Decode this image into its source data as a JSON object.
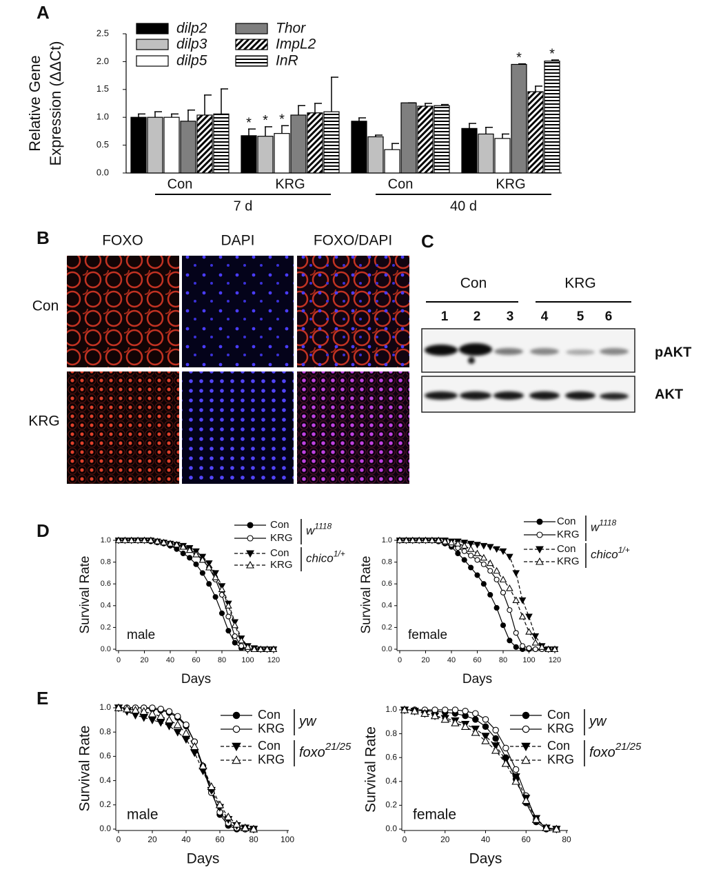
{
  "chart_data": [
    {
      "panel": "A",
      "type": "bar",
      "y_label": [
        "Relative Gene",
        "Expression (ΔΔCt)"
      ],
      "categories": [
        "Con",
        "KRG",
        "Con",
        "KRG"
      ],
      "groups": [
        "7 d",
        "40 d"
      ],
      "ylim": [
        0,
        2.5
      ],
      "yticks": [
        {
          "value": 0,
          "label": "0.0"
        },
        {
          "value": 0.5,
          "label": "0.5"
        },
        {
          "value": 1,
          "label": "1.0"
        },
        {
          "value": 1.5,
          "label": "1.5"
        },
        {
          "value": 2,
          "label": "2.0"
        },
        {
          "value": 2.5,
          "label": "2.5"
        }
      ],
      "series": [
        {
          "name": "dilp2",
          "color": "#000000",
          "values": [
            1.0,
            0.67,
            0.93,
            0.8
          ],
          "errors": [
            0.06,
            0.12,
            0.06,
            0.09
          ]
        },
        {
          "name": "dilp3",
          "color": "#c0c0c0",
          "values": [
            1.0,
            0.66,
            0.65,
            0.7
          ],
          "errors": [
            0.1,
            0.17,
            0.03,
            0.12
          ]
        },
        {
          "name": "dilp5",
          "color": "#ffffff",
          "values": [
            1.0,
            0.71,
            0.42,
            0.62
          ],
          "errors": [
            0.06,
            0.14,
            0.11,
            0.08
          ]
        },
        {
          "name": "Thor",
          "color": "#7f7f7f",
          "values": [
            0.93,
            1.04,
            1.26,
            1.95
          ],
          "errors": [
            0.2,
            0.17,
            0.0,
            0.01
          ]
        },
        {
          "name": "ImpL2",
          "color": "#000000",
          "hatch": "diagonal",
          "values": [
            1.04,
            1.08,
            1.2,
            1.46
          ],
          "errors": [
            0.36,
            0.17,
            0.05,
            0.1
          ]
        },
        {
          "name": "InR",
          "color": "#000000",
          "hatch": "horizontal",
          "values": [
            1.06,
            1.1,
            1.21,
            2.01
          ],
          "errors": [
            0.45,
            0.62,
            0.02,
            0.02
          ]
        }
      ],
      "annotations": [
        {
          "text": "*",
          "series": 0,
          "category": 1
        },
        {
          "text": "*",
          "series": 1,
          "category": 1
        },
        {
          "text": "*",
          "series": 2,
          "category": 1
        },
        {
          "text": "*",
          "series": 3,
          "category": 3
        },
        {
          "text": "*",
          "series": 5,
          "category": 3
        }
      ]
    },
    {
      "panel": "D",
      "type": "line",
      "title": "male",
      "x_label": "Days",
      "y_label": "Survival Rate",
      "xlim": [
        0,
        120
      ],
      "xticks": [
        0,
        20,
        40,
        60,
        80,
        100,
        120
      ],
      "ylim": [
        0,
        1
      ],
      "yticks": [
        {
          "value": 0,
          "label": "0.0"
        },
        {
          "value": 0.2,
          "label": "0.2"
        },
        {
          "value": 0.4,
          "label": "0.4"
        },
        {
          "value": 0.6,
          "label": "0.6"
        },
        {
          "value": 0.8,
          "label": "0.8"
        },
        {
          "value": 1,
          "label": "1.0"
        }
      ],
      "x": [
        0,
        5,
        10,
        15,
        20,
        25,
        30,
        35,
        40,
        45,
        50,
        55,
        60,
        65,
        70,
        75,
        80,
        85,
        90,
        95,
        100,
        105,
        110,
        115,
        120
      ],
      "genotypes": [
        {
          "label": "w",
          "sup": "1118"
        },
        {
          "label": "chico",
          "sup": "1/+"
        }
      ],
      "series": [
        {
          "name": "Con",
          "genotype": 0,
          "marker": "circle",
          "filled": true,
          "dashed": false,
          "color": "#000000",
          "values": [
            1,
            1,
            1,
            1,
            1,
            0.99,
            0.98,
            0.97,
            0.95,
            0.92,
            0.88,
            0.84,
            0.78,
            0.7,
            0.6,
            0.48,
            0.33,
            0.17,
            0.06,
            0.01,
            0,
            0,
            0,
            0,
            0
          ]
        },
        {
          "name": "KRG",
          "genotype": 0,
          "marker": "circle",
          "filled": false,
          "dashed": false,
          "color": "#000000",
          "values": [
            1,
            1,
            1,
            1,
            1,
            1,
            0.99,
            0.98,
            0.97,
            0.96,
            0.94,
            0.92,
            0.88,
            0.82,
            0.75,
            0.64,
            0.5,
            0.3,
            0.12,
            0.03,
            0,
            0,
            0,
            0,
            0
          ]
        },
        {
          "name": "Con",
          "genotype": 1,
          "marker": "triangle-down",
          "filled": true,
          "dashed": true,
          "color": "#000000",
          "values": [
            1,
            1,
            1,
            1,
            1,
            1,
            0.99,
            0.98,
            0.97,
            0.96,
            0.95,
            0.93,
            0.9,
            0.85,
            0.79,
            0.7,
            0.58,
            0.42,
            0.25,
            0.1,
            0.03,
            0.01,
            0,
            0,
            0
          ]
        },
        {
          "name": "KRG",
          "genotype": 1,
          "marker": "triangle-up",
          "filled": false,
          "dashed": true,
          "color": "#000000",
          "values": [
            1,
            1,
            1,
            1,
            1,
            1,
            0.99,
            0.98,
            0.97,
            0.96,
            0.94,
            0.91,
            0.87,
            0.82,
            0.75,
            0.66,
            0.55,
            0.4,
            0.22,
            0.08,
            0.02,
            0,
            0,
            0,
            0
          ]
        }
      ]
    },
    {
      "type": "line",
      "title": "female",
      "x_label": "Days",
      "y_label": "Survival Rate",
      "xlim": [
        0,
        120
      ],
      "xticks": [
        0,
        20,
        40,
        60,
        80,
        100,
        120
      ],
      "ylim": [
        0,
        1
      ],
      "yticks": [
        {
          "value": 0,
          "label": "0.0"
        },
        {
          "value": 0.2,
          "label": "0.2"
        },
        {
          "value": 0.4,
          "label": "0.4"
        },
        {
          "value": 0.6,
          "label": "0.6"
        },
        {
          "value": 0.8,
          "label": "0.8"
        },
        {
          "value": 1,
          "label": "1.0"
        }
      ],
      "x": [
        0,
        5,
        10,
        15,
        20,
        25,
        30,
        35,
        40,
        45,
        50,
        55,
        60,
        65,
        70,
        75,
        80,
        85,
        90,
        95,
        100,
        105,
        110,
        115,
        120
      ],
      "genotypes": [
        {
          "label": "w",
          "sup": "1118"
        },
        {
          "label": "chico",
          "sup": "1/+"
        }
      ],
      "series": [
        {
          "name": "Con",
          "genotype": 0,
          "marker": "circle",
          "filled": true,
          "dashed": false,
          "color": "#000000",
          "values": [
            1,
            1,
            1,
            1,
            1,
            1,
            0.99,
            0.97,
            0.94,
            0.88,
            0.82,
            0.75,
            0.68,
            0.6,
            0.5,
            0.38,
            0.22,
            0.08,
            0.02,
            0,
            0,
            0,
            0,
            0,
            0
          ]
        },
        {
          "name": "KRG",
          "genotype": 0,
          "marker": "circle",
          "filled": false,
          "dashed": false,
          "color": "#000000",
          "values": [
            1,
            1,
            1,
            1,
            1,
            1,
            0.99,
            0.98,
            0.96,
            0.93,
            0.9,
            0.86,
            0.82,
            0.78,
            0.72,
            0.64,
            0.52,
            0.36,
            0.15,
            0.03,
            0.01,
            0,
            0,
            0,
            0
          ]
        },
        {
          "name": "Con",
          "genotype": 1,
          "marker": "triangle-down",
          "filled": true,
          "dashed": true,
          "color": "#000000",
          "values": [
            1,
            1,
            1,
            1,
            1,
            1,
            1,
            1,
            0.99,
            0.99,
            0.98,
            0.97,
            0.96,
            0.95,
            0.94,
            0.92,
            0.9,
            0.85,
            0.7,
            0.45,
            0.3,
            0.12,
            0.03,
            0,
            0
          ]
        },
        {
          "name": "KRG",
          "genotype": 1,
          "marker": "triangle-up",
          "filled": false,
          "dashed": true,
          "color": "#000000",
          "values": [
            1,
            1,
            1,
            1,
            1,
            1,
            1,
            0.99,
            0.98,
            0.97,
            0.95,
            0.92,
            0.88,
            0.84,
            0.79,
            0.72,
            0.64,
            0.56,
            0.45,
            0.3,
            0.16,
            0.06,
            0.02,
            0,
            0
          ]
        }
      ]
    },
    {
      "panel": "E",
      "type": "line",
      "title": "male",
      "x_label": "Days",
      "y_label": "Survival Rate",
      "xlim": [
        0,
        100
      ],
      "xticks": [
        0,
        20,
        40,
        60,
        80,
        100
      ],
      "ylim": [
        0,
        1
      ],
      "yticks": [
        {
          "value": 0,
          "label": "0.0"
        },
        {
          "value": 0.2,
          "label": "0.2"
        },
        {
          "value": 0.4,
          "label": "0.4"
        },
        {
          "value": 0.6,
          "label": "0.6"
        },
        {
          "value": 0.8,
          "label": "0.8"
        },
        {
          "value": 1,
          "label": "1.0"
        }
      ],
      "x": [
        0,
        5,
        10,
        15,
        20,
        25,
        30,
        35,
        40,
        45,
        50,
        55,
        60,
        65,
        70,
        75,
        80
      ],
      "genotypes": [
        {
          "label": "yw",
          "sup": ""
        },
        {
          "label": "foxo",
          "sup": "21/25"
        }
      ],
      "series": [
        {
          "name": "Con",
          "genotype": 0,
          "marker": "circle",
          "filled": true,
          "dashed": false,
          "color": "#000000",
          "values": [
            1,
            1,
            1,
            1,
            0.99,
            0.98,
            0.96,
            0.92,
            0.85,
            0.72,
            0.52,
            0.32,
            0.12,
            0.03,
            0,
            0,
            0
          ]
        },
        {
          "name": "KRG",
          "genotype": 0,
          "marker": "circle",
          "filled": false,
          "dashed": false,
          "color": "#000000",
          "values": [
            1,
            1,
            1,
            1,
            1,
            0.99,
            0.97,
            0.93,
            0.86,
            0.72,
            0.5,
            0.3,
            0.14,
            0.05,
            0.01,
            0,
            0
          ]
        },
        {
          "name": "Con",
          "genotype": 1,
          "marker": "triangle-down",
          "filled": true,
          "dashed": true,
          "color": "#000000",
          "values": [
            1,
            0.97,
            0.94,
            0.92,
            0.9,
            0.88,
            0.85,
            0.8,
            0.74,
            0.63,
            0.48,
            0.32,
            0.18,
            0.08,
            0.03,
            0.01,
            0
          ]
        },
        {
          "name": "KRG",
          "genotype": 1,
          "marker": "triangle-up",
          "filled": false,
          "dashed": true,
          "color": "#000000",
          "values": [
            1,
            0.99,
            0.98,
            0.97,
            0.95,
            0.93,
            0.9,
            0.86,
            0.79,
            0.68,
            0.52,
            0.35,
            0.2,
            0.1,
            0.04,
            0.01,
            0
          ]
        }
      ]
    },
    {
      "type": "line",
      "title": "female",
      "x_label": "Days",
      "y_label": "Survival Rate",
      "xlim": [
        0,
        80
      ],
      "xticks": [
        0,
        20,
        40,
        60,
        80
      ],
      "ylim": [
        0,
        1
      ],
      "yticks": [
        {
          "value": 0,
          "label": "0.0"
        },
        {
          "value": 0.2,
          "label": "0.2"
        },
        {
          "value": 0.4,
          "label": "0.4"
        },
        {
          "value": 0.6,
          "label": "0.6"
        },
        {
          "value": 0.8,
          "label": "0.8"
        },
        {
          "value": 1,
          "label": "1.0"
        }
      ],
      "x": [
        0,
        5,
        10,
        15,
        20,
        25,
        30,
        35,
        40,
        45,
        50,
        55,
        60,
        65,
        70,
        75
      ],
      "genotypes": [
        {
          "label": "yw",
          "sup": ""
        },
        {
          "label": "foxo",
          "sup": "21/25"
        }
      ],
      "series": [
        {
          "name": "Con",
          "genotype": 0,
          "marker": "circle",
          "filled": true,
          "dashed": false,
          "color": "#000000",
          "values": [
            1,
            1,
            0.99,
            0.99,
            0.98,
            0.97,
            0.95,
            0.92,
            0.86,
            0.76,
            0.6,
            0.42,
            0.22,
            0.06,
            0,
            0
          ]
        },
        {
          "name": "KRG",
          "genotype": 0,
          "marker": "circle",
          "filled": false,
          "dashed": false,
          "color": "#000000",
          "values": [
            1,
            1,
            1,
            1,
            1,
            1,
            0.99,
            0.97,
            0.92,
            0.83,
            0.68,
            0.5,
            0.28,
            0.08,
            0.01,
            0
          ]
        },
        {
          "name": "Con",
          "genotype": 1,
          "marker": "triangle-down",
          "filled": true,
          "dashed": true,
          "color": "#000000",
          "values": [
            1,
            0.99,
            0.97,
            0.95,
            0.93,
            0.91,
            0.88,
            0.84,
            0.78,
            0.7,
            0.58,
            0.44,
            0.26,
            0.09,
            0.01,
            0
          ]
        },
        {
          "name": "KRG",
          "genotype": 1,
          "marker": "triangle-up",
          "filled": false,
          "dashed": true,
          "color": "#000000",
          "values": [
            1,
            0.99,
            0.97,
            0.95,
            0.92,
            0.89,
            0.86,
            0.81,
            0.74,
            0.66,
            0.55,
            0.4,
            0.24,
            0.08,
            0.01,
            0
          ]
        }
      ]
    }
  ],
  "image_panel": {
    "panel": "B",
    "columns": [
      "FOXO",
      "DAPI",
      "FOXO/DAPI"
    ],
    "rows": [
      "Con",
      "KRG"
    ]
  },
  "blot_panel": {
    "panel": "C",
    "groups": [
      "Con",
      "KRG"
    ],
    "lanes": [
      "1",
      "2",
      "3",
      "4",
      "5",
      "6"
    ],
    "rows": [
      "pAKT",
      "AKT"
    ]
  }
}
